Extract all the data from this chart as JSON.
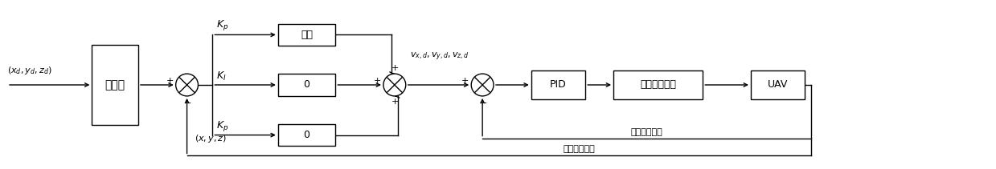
{
  "figsize": [
    12.39,
    2.11
  ],
  "dpi": 100,
  "bg_color": "#ffffff",
  "input_label": "$(x_d,y_d,z_d)$",
  "filter_label": "滤波器",
  "kp_label": "$\\boldsymbol{K_p}$",
  "ki_label": "$\\boldsymbol{K_I}$",
  "kd_label": "$\\boldsymbol{K_p}$",
  "box1_label": "常数",
  "box2_label": "0",
  "box3_label": "0",
  "pid_label": "PID",
  "attitude_label": "姿态控制回路",
  "uav_label": "UAV",
  "speed_feedback": "速度信号反馈",
  "position_feedback": "位置信号反馈",
  "vxd_label": "$v_{x,d},v_{y,d},v_{z,d}$",
  "xyz_label": "$(x,y,z)$",
  "lw": 1.0
}
